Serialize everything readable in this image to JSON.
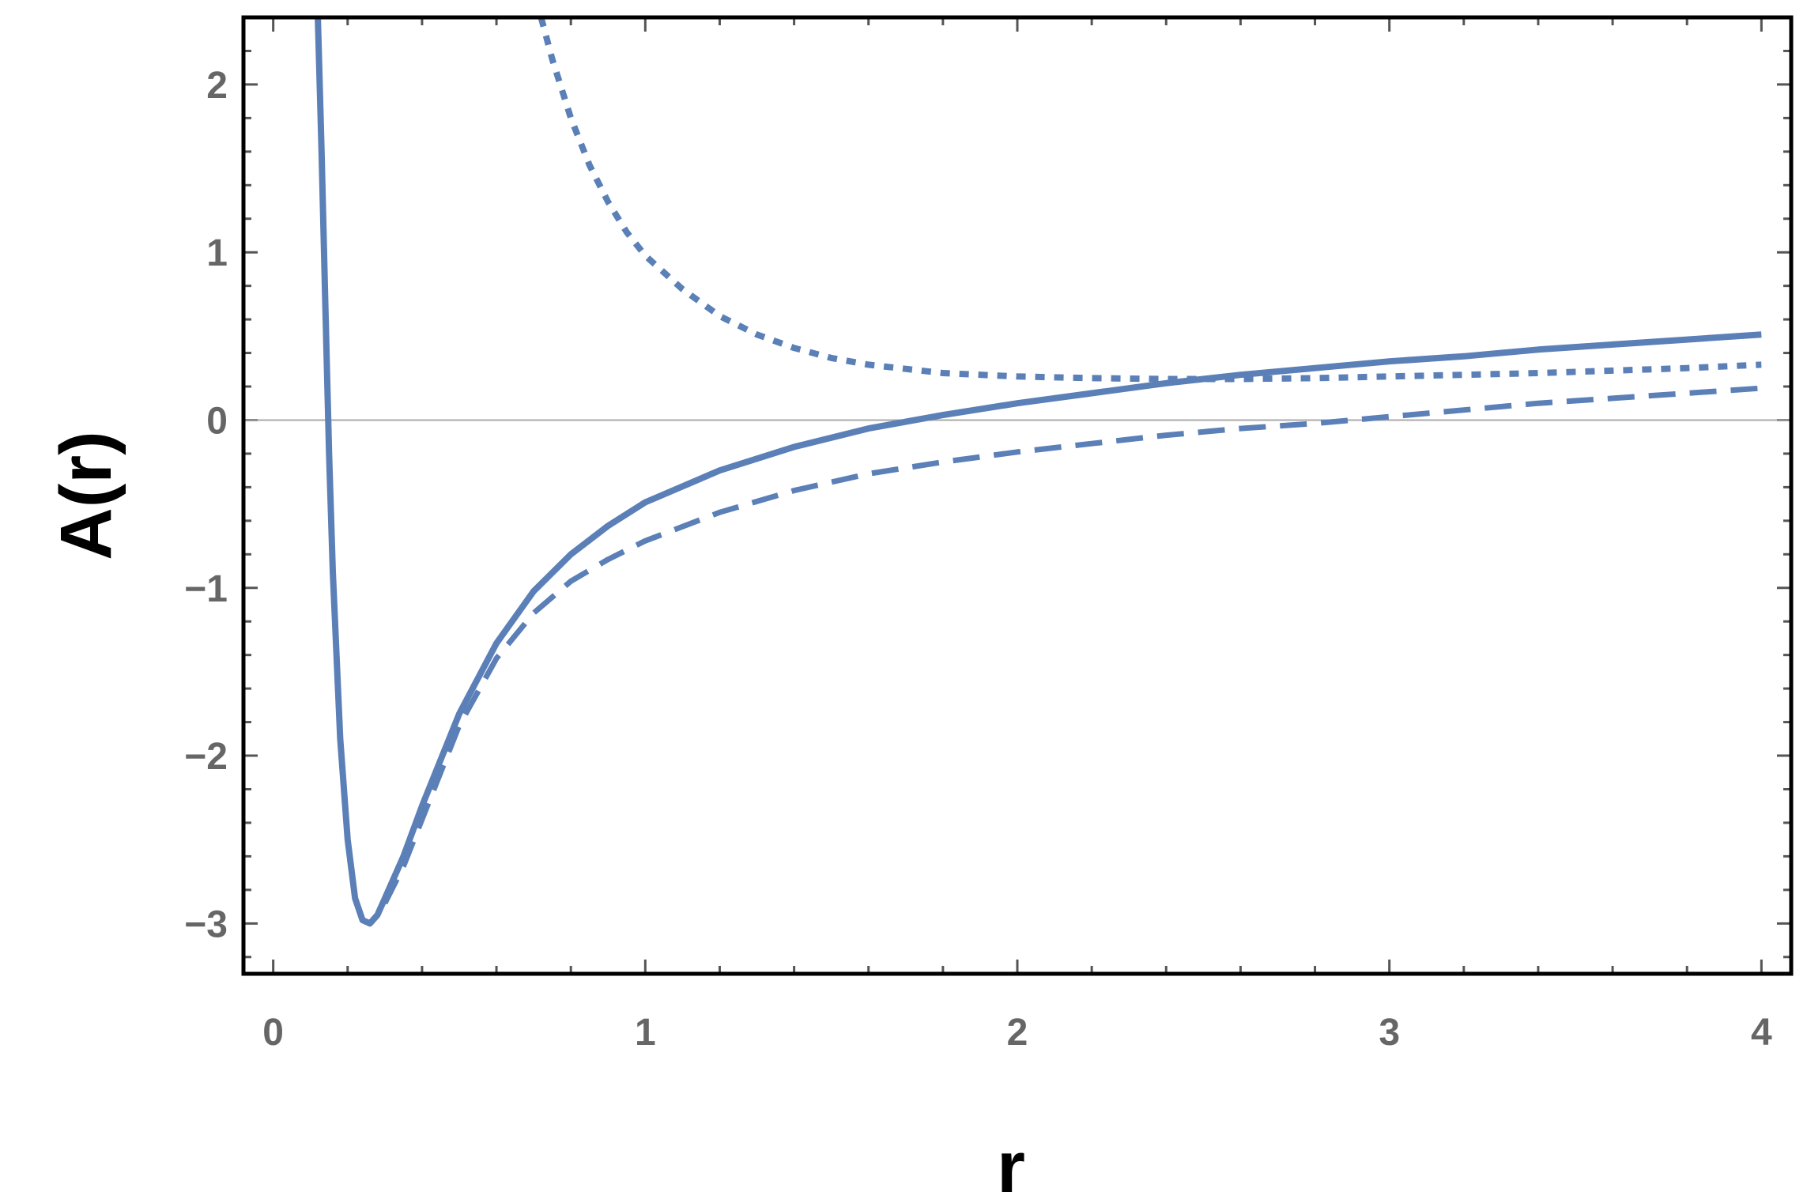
{
  "chart_data": {
    "type": "line",
    "title": "",
    "xlabel": "r",
    "ylabel": "A(r)",
    "xlim": [
      -0.08,
      4.08
    ],
    "ylim": [
      -3.3,
      2.4
    ],
    "x_ticks": [
      0,
      1,
      2,
      3,
      4
    ],
    "x_tick_labels": [
      "0",
      "1",
      "2",
      "3",
      "4"
    ],
    "y_ticks": [
      -3,
      -2,
      -1,
      0,
      1,
      2
    ],
    "y_tick_labels": [
      "−3",
      "−2",
      "−1",
      "0",
      "1",
      "2"
    ],
    "x_minor_step": 0.2,
    "y_minor_step": 0.2,
    "zero_line": true,
    "grid": false,
    "legend": "none",
    "color": "#5b7fb7",
    "series": [
      {
        "style": "solid",
        "x": [
          0.12,
          0.13,
          0.14,
          0.15,
          0.16,
          0.18,
          0.2,
          0.22,
          0.24,
          0.26,
          0.28,
          0.3,
          0.35,
          0.4,
          0.5,
          0.6,
          0.7,
          0.8,
          0.9,
          1.0,
          1.2,
          1.4,
          1.6,
          1.8,
          2.0,
          2.2,
          2.4,
          2.6,
          2.8,
          3.0,
          3.2,
          3.4,
          3.6,
          3.8,
          4.0
        ],
        "y": [
          2.4,
          1.6,
          0.7,
          -0.2,
          -0.9,
          -1.9,
          -2.5,
          -2.85,
          -2.98,
          -3.0,
          -2.95,
          -2.85,
          -2.6,
          -2.3,
          -1.75,
          -1.33,
          -1.02,
          -0.8,
          -0.63,
          -0.49,
          -0.3,
          -0.16,
          -0.05,
          0.03,
          0.1,
          0.16,
          0.22,
          0.27,
          0.31,
          0.35,
          0.38,
          0.42,
          0.45,
          0.48,
          0.51
        ]
      },
      {
        "style": "dashed",
        "x": [
          0.3,
          0.35,
          0.4,
          0.5,
          0.6,
          0.7,
          0.8,
          0.9,
          1.0,
          1.2,
          1.4,
          1.6,
          1.8,
          2.0,
          2.2,
          2.4,
          2.6,
          2.8,
          3.0,
          3.2,
          3.4,
          3.6,
          3.8,
          4.0
        ],
        "y": [
          -2.88,
          -2.66,
          -2.38,
          -1.82,
          -1.42,
          -1.15,
          -0.96,
          -0.83,
          -0.72,
          -0.55,
          -0.42,
          -0.32,
          -0.25,
          -0.19,
          -0.14,
          -0.09,
          -0.05,
          -0.02,
          0.02,
          0.06,
          0.1,
          0.13,
          0.16,
          0.19
        ]
      },
      {
        "style": "dotted",
        "x": [
          0.72,
          0.75,
          0.8,
          0.85,
          0.9,
          0.95,
          1.0,
          1.1,
          1.2,
          1.3,
          1.4,
          1.5,
          1.6,
          1.8,
          2.0,
          2.2,
          2.4,
          2.6,
          2.8,
          3.0,
          3.2,
          3.4,
          3.6,
          3.8,
          4.0
        ],
        "y": [
          2.4,
          2.15,
          1.8,
          1.52,
          1.3,
          1.12,
          0.98,
          0.78,
          0.62,
          0.51,
          0.43,
          0.37,
          0.33,
          0.28,
          0.26,
          0.25,
          0.245,
          0.245,
          0.25,
          0.26,
          0.27,
          0.28,
          0.295,
          0.31,
          0.33
        ]
      }
    ]
  }
}
